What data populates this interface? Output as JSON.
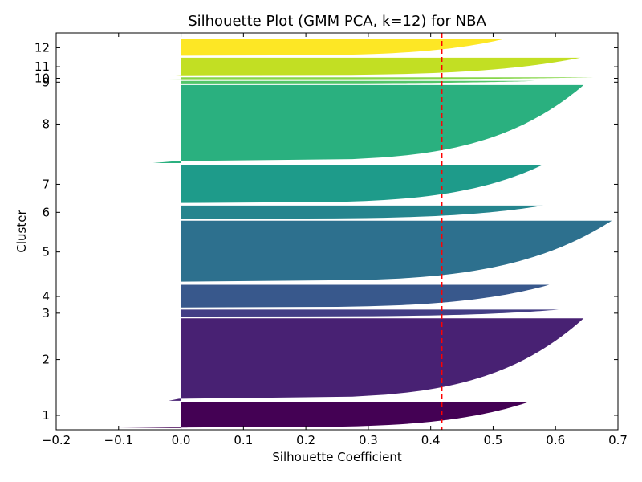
{
  "chart_data": {
    "type": "silhouette",
    "title": "Silhouette Plot (GMM PCA, k=12) for NBA",
    "xlabel": "Silhouette Coefficient",
    "ylabel": "Cluster",
    "xlim": [
      -0.2,
      0.7
    ],
    "xticks": [
      -0.2,
      -0.1,
      0.0,
      0.1,
      0.2,
      0.3,
      0.4,
      0.5,
      0.6,
      0.7
    ],
    "xtick_labels": [
      "−0.2",
      "−0.1",
      "0.0",
      "0.1",
      "0.2",
      "0.3",
      "0.4",
      "0.5",
      "0.6",
      "0.7"
    ],
    "grid": false,
    "average_line": {
      "value": 0.418,
      "color": "#ff0000",
      "style": "dashed"
    },
    "clusters": [
      {
        "label": "1",
        "size": 40,
        "min": -0.1,
        "max": 0.555,
        "color": "#440154"
      },
      {
        "label": "2",
        "size": 128,
        "min": -0.02,
        "max": 0.645,
        "color": "#482173"
      },
      {
        "label": "3",
        "size": 11,
        "min": 0.0,
        "max": 0.605,
        "color": "#433e85"
      },
      {
        "label": "4",
        "size": 36,
        "min": 0.0,
        "max": 0.59,
        "color": "#38588c"
      },
      {
        "label": "5",
        "size": 97,
        "min": 0.0,
        "max": 0.69,
        "color": "#2d708e"
      },
      {
        "label": "6",
        "size": 21,
        "min": 0.0,
        "max": 0.58,
        "color": "#25858e"
      },
      {
        "label": "7",
        "size": 61,
        "min": 0.0,
        "max": 0.58,
        "color": "#1e9b8a"
      },
      {
        "label": "8",
        "size": 121,
        "min": -0.045,
        "max": 0.645,
        "color": "#2ab07f"
      },
      {
        "label": "9",
        "size": 4,
        "min": 0.0,
        "max": 0.57,
        "color": "#52c569"
      },
      {
        "label": "10",
        "size": 3,
        "min": -0.02,
        "max": 0.66,
        "color": "#86d549"
      },
      {
        "label": "11",
        "size": 28,
        "min": -0.015,
        "max": 0.64,
        "color": "#c2df23"
      },
      {
        "label": "12",
        "size": 26,
        "min": 0.0,
        "max": 0.515,
        "color": "#fde725"
      }
    ]
  }
}
